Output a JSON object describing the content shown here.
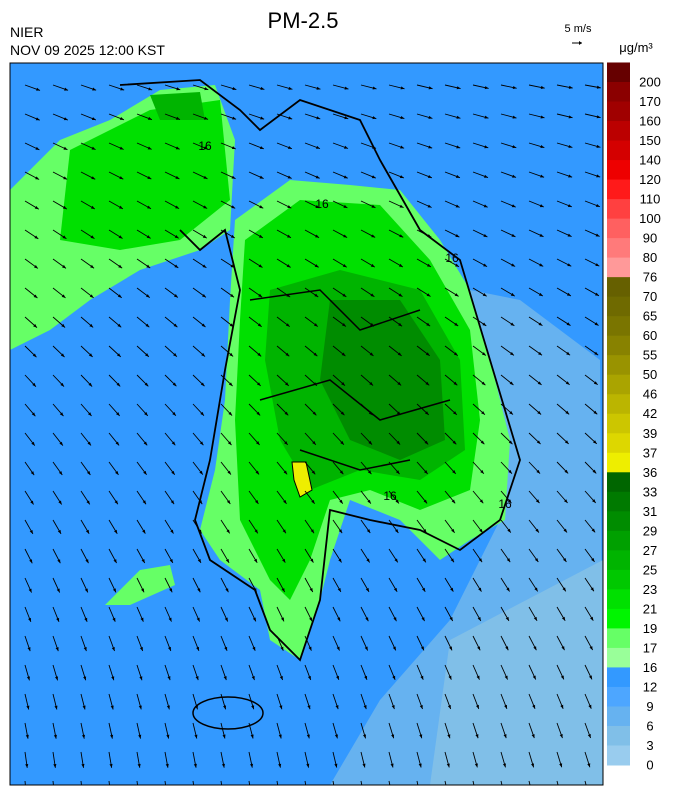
{
  "header": {
    "title": "PM-2.5",
    "agency": "NIER",
    "datetime": "NOV 09 2025 12:00 KST",
    "wind_scale": "5 m/s",
    "unit": "μg/m³"
  },
  "map": {
    "contour_labels": [
      "16",
      "16",
      "16",
      "16",
      "16"
    ]
  },
  "legend": {
    "labels": [
      "200",
      "170",
      "160",
      "150",
      "140",
      "120",
      "110",
      "100",
      "90",
      "80",
      "76",
      "70",
      "65",
      "60",
      "55",
      "50",
      "46",
      "42",
      "39",
      "37",
      "36",
      "33",
      "31",
      "29",
      "27",
      "25",
      "23",
      "21",
      "19",
      "17",
      "16",
      "12",
      "9",
      "6",
      "3",
      "0"
    ],
    "colors": [
      "#660000",
      "#8b0000",
      "#a00000",
      "#bb0000",
      "#d40000",
      "#ee0000",
      "#ff1a1a",
      "#ff4040",
      "#ff6060",
      "#ff7a7a",
      "#ff9999",
      "#666000",
      "#6f6a00",
      "#7a7500",
      "#888200",
      "#999300",
      "#aaa400",
      "#bbb500",
      "#ccc600",
      "#ddd700",
      "#eeee00",
      "#006600",
      "#007a00",
      "#008c00",
      "#00a000",
      "#00b400",
      "#00c800",
      "#00e000",
      "#00f500",
      "#66ff66",
      "#99ff99",
      "#3399ff",
      "#4da6ff",
      "#66b2f0",
      "#80bfe8",
      "#99ccee"
    ]
  }
}
